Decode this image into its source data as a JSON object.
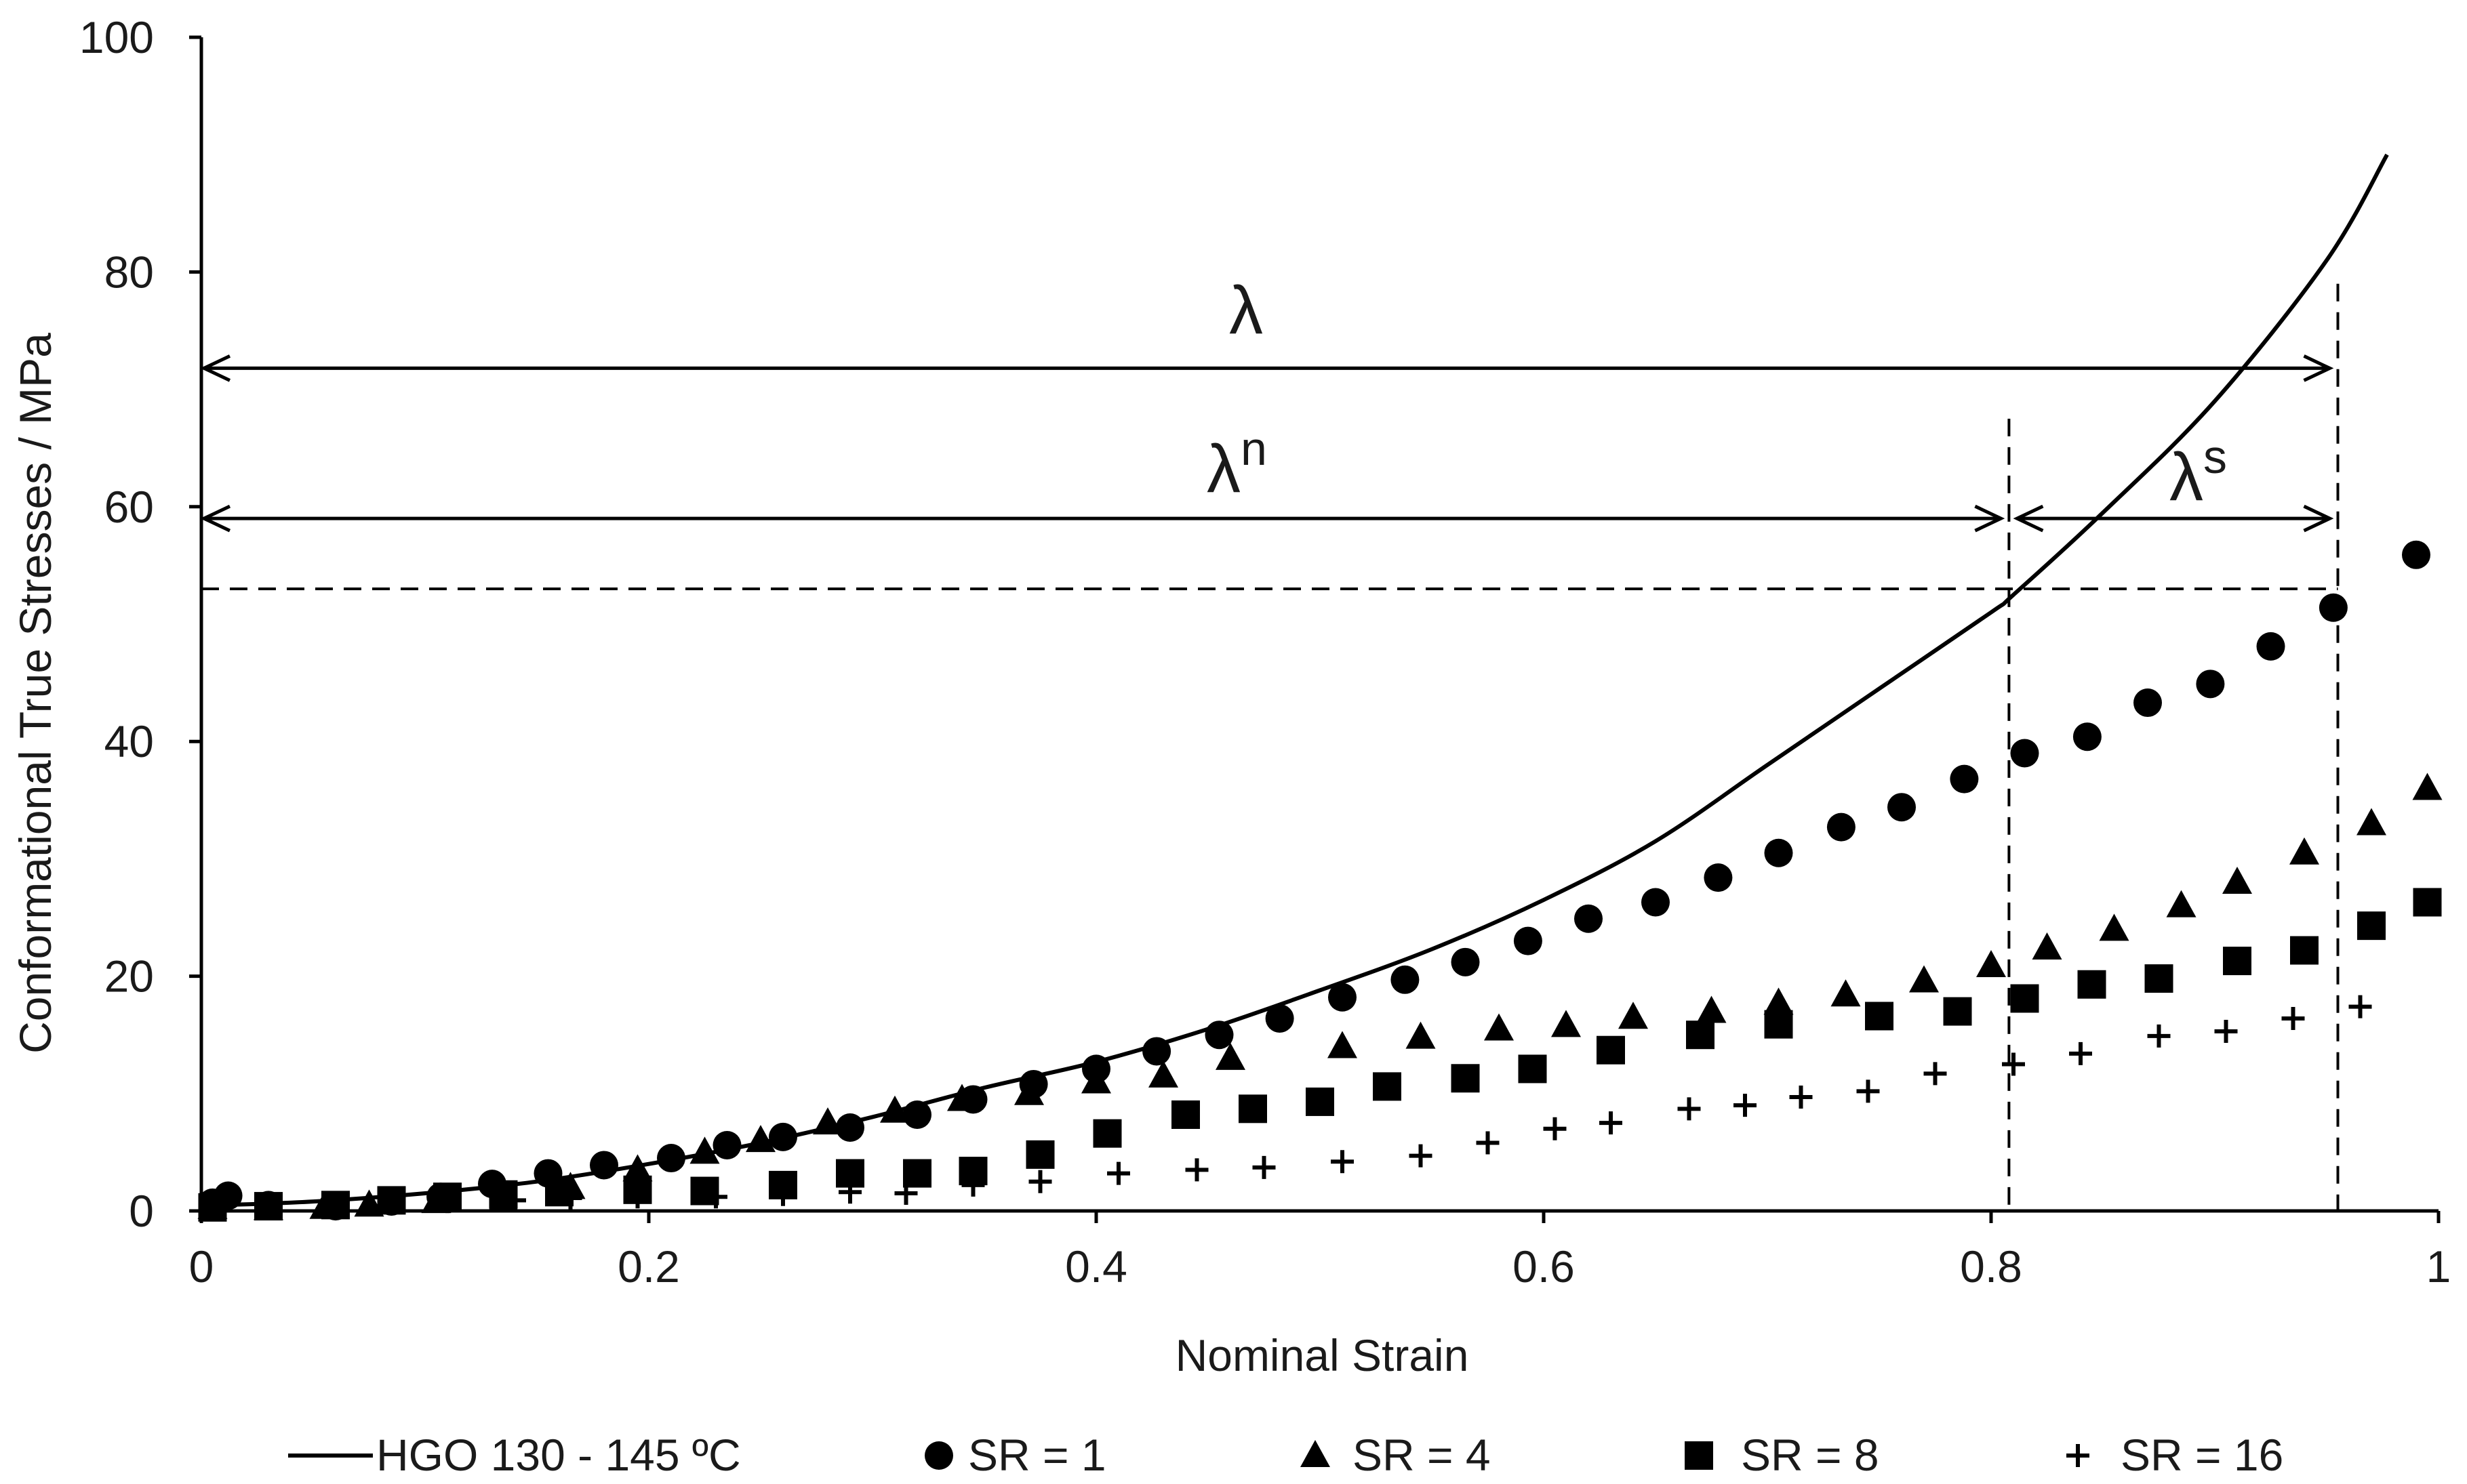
{
  "chart_data": {
    "type": "scatter",
    "xlabel": "Nominal Strain",
    "ylabel": "Conformational True Stresses / MPa",
    "xlim": [
      0,
      1
    ],
    "ylim": [
      0,
      100
    ],
    "xticks": [
      0,
      0.2,
      0.4,
      0.6,
      0.8,
      1
    ],
    "yticks": [
      0,
      20,
      40,
      60,
      80,
      100
    ],
    "xtick_labels": [
      "0",
      "0.2",
      "0.4",
      "0.6",
      "0.8",
      "1"
    ],
    "ytick_labels": [
      "0",
      "20",
      "40",
      "60",
      "80",
      "100"
    ],
    "grid": false,
    "legend_position": "bottom",
    "series": [
      {
        "name": "HGO 130 - 145 ºC",
        "kind": "line",
        "color": "#000000",
        "x": [
          0.01,
          0.05,
          0.1,
          0.15,
          0.2,
          0.25,
          0.3,
          0.35,
          0.4,
          0.45,
          0.5,
          0.55,
          0.6,
          0.65,
          0.7,
          0.75,
          0.8,
          0.81,
          0.85,
          0.9,
          0.95,
          0.977
        ],
        "y": [
          0.5,
          0.8,
          1.5,
          2.5,
          4.0,
          5.8,
          8.0,
          10.5,
          12.7,
          15.5,
          18.8,
          22.3,
          26.5,
          31.5,
          38.0,
          44.5,
          51.0,
          52.5,
          59.5,
          69.0,
          81.0,
          90.0
        ]
      },
      {
        "name": "SR = 1",
        "marker": "circle",
        "color": "#000000",
        "x": [
          0.005,
          0.012,
          0.03,
          0.06,
          0.085,
          0.107,
          0.13,
          0.155,
          0.18,
          0.21,
          0.235,
          0.26,
          0.29,
          0.32,
          0.345,
          0.372,
          0.4,
          0.427,
          0.455,
          0.482,
          0.51,
          0.538,
          0.565,
          0.593,
          0.62,
          0.65,
          0.678,
          0.705,
          0.733,
          0.76,
          0.788,
          0.815,
          0.843,
          0.87,
          0.898,
          0.925,
          0.953,
          0.99
        ],
        "y": [
          0.7,
          1.3,
          0.5,
          0.4,
          0.8,
          1.2,
          2.3,
          3.2,
          3.9,
          4.5,
          5.6,
          6.3,
          7.1,
          8.2,
          9.5,
          10.8,
          12.1,
          13.6,
          15.0,
          16.4,
          18.2,
          19.7,
          21.2,
          23.0,
          24.9,
          26.3,
          28.4,
          30.5,
          32.7,
          34.4,
          36.8,
          39.0,
          40.4,
          43.3,
          44.9,
          48.1,
          51.4,
          55.9
        ]
      },
      {
        "name": "SR = 4",
        "marker": "triangle",
        "color": "#000000",
        "x": [
          0.005,
          0.03,
          0.055,
          0.075,
          0.105,
          0.135,
          0.165,
          0.195,
          0.225,
          0.25,
          0.28,
          0.31,
          0.34,
          0.37,
          0.4,
          0.43,
          0.46,
          0.51,
          0.545,
          0.58,
          0.61,
          0.64,
          0.675,
          0.705,
          0.735,
          0.77,
          0.8,
          0.825,
          0.855,
          0.885,
          0.91,
          0.94,
          0.97,
          0.995
        ],
        "y": [
          0.3,
          0.2,
          0.3,
          0.5,
          0.8,
          1.0,
          2.0,
          3.5,
          5.0,
          6.0,
          7.5,
          8.5,
          9.5,
          10.0,
          11.0,
          11.5,
          13.0,
          14.0,
          14.8,
          15.5,
          15.8,
          16.5,
          17.0,
          17.7,
          18.4,
          19.6,
          20.9,
          22.4,
          24.0,
          26.0,
          28.0,
          30.5,
          33.0,
          36.0
        ]
      },
      {
        "name": "SR = 8",
        "marker": "square",
        "color": "#000000",
        "x": [
          0.005,
          0.03,
          0.06,
          0.085,
          0.11,
          0.135,
          0.16,
          0.195,
          0.225,
          0.26,
          0.29,
          0.32,
          0.345,
          0.375,
          0.405,
          0.44,
          0.47,
          0.5,
          0.53,
          0.565,
          0.595,
          0.63,
          0.67,
          0.705,
          0.75,
          0.785,
          0.815,
          0.845,
          0.875,
          0.91,
          0.94,
          0.97,
          0.995
        ],
        "y": [
          0.3,
          0.4,
          0.5,
          0.9,
          1.2,
          1.4,
          1.6,
          1.8,
          1.7,
          2.2,
          3.2,
          3.2,
          3.4,
          4.8,
          6.6,
          8.2,
          8.7,
          9.3,
          10.6,
          11.3,
          12.1,
          13.7,
          15.0,
          15.9,
          16.6,
          17.0,
          18.1,
          19.3,
          19.8,
          21.3,
          22.2,
          24.3,
          26.3
        ]
      },
      {
        "name": "SR = 16",
        "marker": "plus",
        "color": "#000000",
        "x": [
          0.005,
          0.03,
          0.06,
          0.085,
          0.11,
          0.14,
          0.165,
          0.195,
          0.23,
          0.26,
          0.29,
          0.315,
          0.345,
          0.375,
          0.41,
          0.445,
          0.475,
          0.51,
          0.545,
          0.575,
          0.605,
          0.63,
          0.665,
          0.69,
          0.715,
          0.745,
          0.775,
          0.81,
          0.84,
          0.875,
          0.905,
          0.935,
          0.965
        ],
        "y": [
          0.2,
          0.3,
          0.5,
          0.7,
          0.8,
          0.9,
          1.1,
          1.2,
          1.2,
          1.4,
          1.6,
          1.5,
          2.2,
          2.5,
          3.2,
          3.5,
          3.7,
          4.2,
          4.7,
          5.8,
          7.0,
          7.5,
          8.7,
          9.0,
          9.7,
          10.2,
          11.7,
          12.5,
          13.4,
          14.9,
          15.3,
          16.4,
          17.4
        ]
      }
    ],
    "annotations": {
      "dashed_level_y": 53,
      "lambda_n_end_x": 0.808,
      "lambda_end_x": 0.955,
      "lambda_arrow_y": 71.8,
      "lambda_n_arrow_y": 59.0,
      "lambda_label": "λ",
      "lambda_n_base": "λ",
      "lambda_n_sup": "n",
      "lambda_s_base": "λ",
      "lambda_s_sup": "s"
    }
  }
}
